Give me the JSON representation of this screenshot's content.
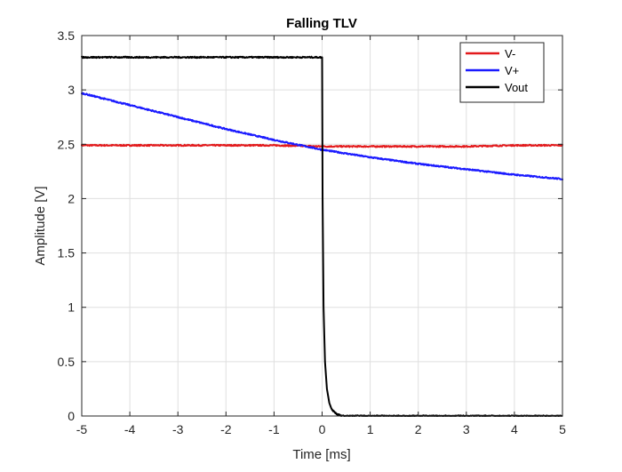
{
  "chart_data": {
    "type": "line",
    "title": "Falling TLV",
    "xlabel": "Time [ms]",
    "ylabel": "Amplitude [V]",
    "xlim": [
      -5,
      5
    ],
    "ylim": [
      0,
      3.5
    ],
    "xticks": [
      -5,
      -4,
      -3,
      -2,
      -1,
      0,
      1,
      2,
      3,
      4,
      5
    ],
    "yticks": [
      0,
      0.5,
      1,
      1.5,
      2,
      2.5,
      3,
      3.5
    ],
    "xtick_labels": [
      "-5",
      "-4",
      "-3",
      "-2",
      "-1",
      "0",
      "1",
      "2",
      "3",
      "4",
      "5"
    ],
    "ytick_labels": [
      "0",
      "0.5",
      "1",
      "1.5",
      "2",
      "2.5",
      "3",
      "3.5"
    ],
    "grid": true,
    "legend_position": "top-right",
    "series": [
      {
        "name": "V-",
        "color": "#e31a1c",
        "x": [
          -5,
          -4,
          -3,
          -2,
          -1,
          0,
          1,
          2,
          3,
          4,
          5
        ],
        "y": [
          2.49,
          2.49,
          2.49,
          2.49,
          2.49,
          2.48,
          2.48,
          2.48,
          2.48,
          2.49,
          2.49
        ]
      },
      {
        "name": "V+",
        "color": "#1a1aff",
        "x": [
          -5,
          -4,
          -3,
          -2,
          -1,
          0,
          1,
          2,
          3,
          4,
          5
        ],
        "y": [
          2.97,
          2.86,
          2.75,
          2.64,
          2.54,
          2.45,
          2.38,
          2.32,
          2.27,
          2.22,
          2.18
        ]
      },
      {
        "name": "Vout",
        "color": "#000000",
        "x": [
          -5,
          -4,
          -3,
          -2,
          -1,
          0,
          0.01,
          0.03,
          0.06,
          0.1,
          0.15,
          0.2,
          0.3,
          0.4,
          1,
          2,
          3,
          4,
          5
        ],
        "y": [
          3.3,
          3.3,
          3.3,
          3.3,
          3.3,
          3.3,
          2.0,
          1.0,
          0.5,
          0.25,
          0.12,
          0.06,
          0.02,
          0.0,
          0.0,
          0.0,
          0.0,
          0.0,
          0.0
        ]
      }
    ]
  }
}
